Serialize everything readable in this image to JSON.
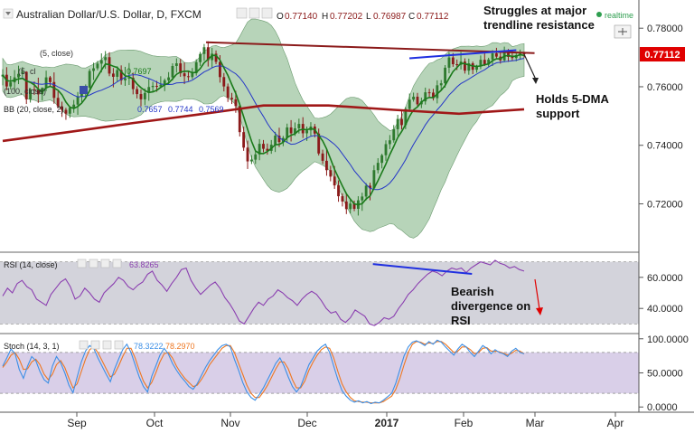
{
  "header": {
    "title": "Australian Dollar/U.S. Dollar, D, FXCM",
    "ohlc": [
      {
        "label": "O",
        "value": "0.77140"
      },
      {
        "label": "H",
        "value": "0.77202"
      },
      {
        "label": "L",
        "value": "0.76987"
      },
      {
        "label": "C",
        "value": "0.77112"
      }
    ],
    "realtime": "realtime"
  },
  "legends": {
    "ma_partial": "(5, close)",
    "ma5": "(5, cl",
    "ma5_val": "0.7697",
    "ma100": "(100, close)",
    "bb": "BB (20, close, 2)",
    "bb_vals": [
      "0.7657",
      "0.7744",
      "0.7569"
    ],
    "rsi": "RSI (14, close)",
    "rsi_val": "63.8265",
    "stoch": "Stoch (14, 3, 1)",
    "stoch_vals": [
      "78.3222",
      "78.2970"
    ]
  },
  "annotations": {
    "resistance": [
      "Struggles at major",
      "trendline resistance"
    ],
    "support": [
      "Holds 5-DMA",
      "support"
    ],
    "rsi_note": [
      "Bearish",
      "divergence on",
      "RSI"
    ]
  },
  "price_badge": "0.77112",
  "colors": {
    "background": "#ffffff",
    "band_fill": "#a5c9a8",
    "candle_up": "#2f7a2f",
    "candle_down": "#8b1a1a",
    "ma200": "#a01818",
    "ma_fast": "#1a7a1a",
    "ma_mid": "#2436c8",
    "trend_blue": "#2030e0",
    "rsi_line": "#8b3fb0",
    "rsi_band": "#d3d3db",
    "stoch_band": "#d9cfe8",
    "stoch_k": "#3c8fe6",
    "stoch_d": "#ee7722",
    "badge": "#e00000",
    "realtime_dot": "#2e9e4f"
  },
  "chart_data": {
    "type": "candlestick",
    "symbol": "Australian Dollar/U.S. Dollar",
    "interval": "D",
    "source": "FXCM",
    "x_ticks": [
      "Sep",
      "Oct",
      "Nov",
      "Dec",
      "2017",
      "Feb",
      "Mar",
      "Apr"
    ],
    "price_axis": {
      "ticks": [
        0.72,
        0.74,
        0.76,
        0.78
      ],
      "tick_labels": [
        "0.72000",
        "0.74000",
        "0.76000",
        "0.78000"
      ],
      "range": [
        0.7044,
        0.7884
      ]
    },
    "candles": [
      [
        0.7635,
        0.766,
        0.7605,
        0.7641
      ],
      [
        0.7641,
        0.7667,
        0.7588,
        0.7601
      ],
      [
        0.7601,
        0.7637,
        0.7591,
        0.7615
      ],
      [
        0.7615,
        0.7657,
        0.7585,
        0.7632
      ],
      [
        0.7632,
        0.7672,
        0.7609,
        0.7644
      ],
      [
        0.7644,
        0.7667,
        0.7633,
        0.7651
      ],
      [
        0.7651,
        0.7653,
        0.7541,
        0.7557
      ],
      [
        0.7557,
        0.7596,
        0.7546,
        0.7591
      ],
      [
        0.7591,
        0.7618,
        0.7572,
        0.7589
      ],
      [
        0.7589,
        0.7631,
        0.7545,
        0.7574
      ],
      [
        0.7574,
        0.7598,
        0.7553,
        0.7596
      ],
      [
        0.7596,
        0.7655,
        0.7585,
        0.7632
      ],
      [
        0.7632,
        0.7637,
        0.7602,
        0.7616
      ],
      [
        0.7616,
        0.7649,
        0.7542,
        0.7562
      ],
      [
        0.7562,
        0.7584,
        0.7526,
        0.7533
      ],
      [
        0.7533,
        0.7549,
        0.7497,
        0.7521
      ],
      [
        0.7521,
        0.7528,
        0.7487,
        0.7508
      ],
      [
        0.7508,
        0.7531,
        0.7494,
        0.7528
      ],
      [
        0.7528,
        0.7555,
        0.7511,
        0.7539
      ],
      [
        0.7539,
        0.7582,
        0.7504,
        0.7567
      ],
      [
        0.7567,
        0.7595,
        0.7547,
        0.7578
      ],
      [
        0.7578,
        0.7608,
        0.7562,
        0.7597
      ],
      [
        0.7597,
        0.7661,
        0.7591,
        0.7654
      ],
      [
        0.7654,
        0.7682,
        0.7623,
        0.7663
      ],
      [
        0.7663,
        0.7688,
        0.7656,
        0.7679
      ],
      [
        0.7679,
        0.7714,
        0.7649,
        0.7691
      ],
      [
        0.7691,
        0.7722,
        0.7661,
        0.7701
      ],
      [
        0.7701,
        0.7718,
        0.7636,
        0.7645
      ],
      [
        0.7645,
        0.7664,
        0.7598,
        0.7634
      ],
      [
        0.7634,
        0.767,
        0.7617,
        0.7657
      ],
      [
        0.7657,
        0.7673,
        0.7607,
        0.7622
      ],
      [
        0.7622,
        0.7668,
        0.7603,
        0.7629
      ],
      [
        0.7629,
        0.7681,
        0.7606,
        0.7631
      ],
      [
        0.7631,
        0.7648,
        0.7574,
        0.7592
      ],
      [
        0.7592,
        0.7602,
        0.756,
        0.7575
      ],
      [
        0.7575,
        0.7591,
        0.7533,
        0.7557
      ],
      [
        0.7557,
        0.7594,
        0.7537,
        0.7579
      ],
      [
        0.7579,
        0.7626,
        0.7552,
        0.7599
      ],
      [
        0.7599,
        0.7617,
        0.758,
        0.7603
      ],
      [
        0.7603,
        0.762,
        0.7583,
        0.7601
      ],
      [
        0.7601,
        0.7636,
        0.7595,
        0.7607
      ],
      [
        0.7607,
        0.7628,
        0.7585,
        0.7622
      ],
      [
        0.7622,
        0.765,
        0.7608,
        0.7632
      ],
      [
        0.7632,
        0.768,
        0.7621,
        0.7671
      ],
      [
        0.7671,
        0.7697,
        0.7648,
        0.768
      ],
      [
        0.768,
        0.7695,
        0.7634,
        0.7646
      ],
      [
        0.7646,
        0.7683,
        0.7609,
        0.7636
      ],
      [
        0.7636,
        0.7651,
        0.762,
        0.7633
      ],
      [
        0.7633,
        0.7664,
        0.7626,
        0.7646
      ],
      [
        0.7646,
        0.7694,
        0.7638,
        0.7684
      ],
      [
        0.7684,
        0.7719,
        0.7671,
        0.7712
      ],
      [
        0.7712,
        0.7746,
        0.7689,
        0.7735
      ],
      [
        0.7735,
        0.7755,
        0.7669,
        0.7691
      ],
      [
        0.7691,
        0.7733,
        0.7664,
        0.7713
      ],
      [
        0.7713,
        0.7724,
        0.7677,
        0.7685
      ],
      [
        0.7685,
        0.7708,
        0.7614,
        0.7633
      ],
      [
        0.7633,
        0.7647,
        0.7584,
        0.7601
      ],
      [
        0.7601,
        0.7611,
        0.7548,
        0.7562
      ],
      [
        0.7562,
        0.7579,
        0.7541,
        0.7557
      ],
      [
        0.7557,
        0.7586,
        0.7511,
        0.7534
      ],
      [
        0.7534,
        0.7541,
        0.743,
        0.7445
      ],
      [
        0.7445,
        0.7464,
        0.7381,
        0.7392
      ],
      [
        0.7392,
        0.7416,
        0.7319,
        0.7345
      ],
      [
        0.7345,
        0.7366,
        0.7336,
        0.7351
      ],
      [
        0.7351,
        0.738,
        0.7336,
        0.7369
      ],
      [
        0.7369,
        0.7421,
        0.7349,
        0.7405
      ],
      [
        0.7405,
        0.7418,
        0.7376,
        0.7388
      ],
      [
        0.7388,
        0.7406,
        0.7368,
        0.7381
      ],
      [
        0.7381,
        0.7418,
        0.7371,
        0.7402
      ],
      [
        0.7402,
        0.7446,
        0.7377,
        0.7433
      ],
      [
        0.7433,
        0.746,
        0.7394,
        0.7411
      ],
      [
        0.7411,
        0.7432,
        0.7397,
        0.7425
      ],
      [
        0.7425,
        0.7474,
        0.741,
        0.7461
      ],
      [
        0.7461,
        0.7486,
        0.7413,
        0.7441
      ],
      [
        0.7441,
        0.7478,
        0.7432,
        0.7458
      ],
      [
        0.7458,
        0.7491,
        0.744,
        0.7473
      ],
      [
        0.7473,
        0.7496,
        0.7425,
        0.7441
      ],
      [
        0.7441,
        0.7464,
        0.7415,
        0.7451
      ],
      [
        0.7451,
        0.7479,
        0.7432,
        0.7464
      ],
      [
        0.7464,
        0.7473,
        0.7427,
        0.744
      ],
      [
        0.744,
        0.7457,
        0.7365,
        0.7372
      ],
      [
        0.7372,
        0.7385,
        0.7336,
        0.7347
      ],
      [
        0.7347,
        0.7388,
        0.7296,
        0.7315
      ],
      [
        0.7315,
        0.733,
        0.7277,
        0.7293
      ],
      [
        0.7293,
        0.7329,
        0.7251,
        0.7263
      ],
      [
        0.7263,
        0.728,
        0.7207,
        0.7226
      ],
      [
        0.7226,
        0.7236,
        0.7191,
        0.7208
      ],
      [
        0.7208,
        0.7234,
        0.7165,
        0.7182
      ],
      [
        0.7182,
        0.7216,
        0.7167,
        0.7201
      ],
      [
        0.7201,
        0.7211,
        0.7175,
        0.7183
      ],
      [
        0.7183,
        0.7226,
        0.716,
        0.7212
      ],
      [
        0.7212,
        0.7238,
        0.7176,
        0.7225
      ],
      [
        0.7225,
        0.7271,
        0.7212,
        0.7262
      ],
      [
        0.7262,
        0.7272,
        0.7212,
        0.7253
      ],
      [
        0.7253,
        0.7332,
        0.7248,
        0.7315
      ],
      [
        0.7315,
        0.7356,
        0.7304,
        0.734
      ],
      [
        0.734,
        0.7371,
        0.7321,
        0.7366
      ],
      [
        0.7366,
        0.7417,
        0.7347,
        0.7404
      ],
      [
        0.7404,
        0.7435,
        0.7387,
        0.7417
      ],
      [
        0.7417,
        0.7469,
        0.7409,
        0.7455
      ],
      [
        0.7455,
        0.7504,
        0.7432,
        0.749
      ],
      [
        0.749,
        0.7519,
        0.7454,
        0.7469
      ],
      [
        0.7469,
        0.7531,
        0.7455,
        0.7524
      ],
      [
        0.7524,
        0.7577,
        0.7516,
        0.7556
      ],
      [
        0.7556,
        0.758,
        0.7549,
        0.7566
      ],
      [
        0.7566,
        0.7579,
        0.753,
        0.754
      ],
      [
        0.754,
        0.7563,
        0.7527,
        0.755
      ],
      [
        0.755,
        0.7597,
        0.7539,
        0.7581
      ],
      [
        0.7581,
        0.7593,
        0.7565,
        0.758
      ],
      [
        0.758,
        0.7593,
        0.7553,
        0.7561
      ],
      [
        0.7561,
        0.7622,
        0.7543,
        0.7605
      ],
      [
        0.7605,
        0.7623,
        0.759,
        0.7612
      ],
      [
        0.7612,
        0.7674,
        0.7597,
        0.7665
      ],
      [
        0.7665,
        0.7717,
        0.7646,
        0.77
      ],
      [
        0.77,
        0.7715,
        0.7668,
        0.7677
      ],
      [
        0.7677,
        0.7693,
        0.7657,
        0.7675
      ],
      [
        0.7675,
        0.7719,
        0.7659,
        0.7686
      ],
      [
        0.7686,
        0.7697,
        0.7645,
        0.7655
      ],
      [
        0.7655,
        0.7696,
        0.7641,
        0.768
      ],
      [
        0.768,
        0.7686,
        0.7643,
        0.7658
      ],
      [
        0.7658,
        0.7675,
        0.7648,
        0.767
      ],
      [
        0.767,
        0.7707,
        0.766,
        0.7692
      ],
      [
        0.7692,
        0.7722,
        0.7671,
        0.7676
      ],
      [
        0.7676,
        0.7699,
        0.7669,
        0.7693
      ],
      [
        0.7693,
        0.7725,
        0.7671,
        0.7714
      ],
      [
        0.7714,
        0.7733,
        0.7696,
        0.7703
      ],
      [
        0.7703,
        0.7722,
        0.7679,
        0.769
      ],
      [
        0.769,
        0.7737,
        0.7684,
        0.7725
      ],
      [
        0.7725,
        0.7729,
        0.7685,
        0.7702
      ],
      [
        0.7702,
        0.7724,
        0.7688,
        0.7698
      ],
      [
        0.7698,
        0.7717,
        0.7687,
        0.7708
      ],
      [
        0.7708,
        0.7727,
        0.7692,
        0.7714
      ],
      [
        0.7714,
        0.772,
        0.7699,
        0.7711
      ]
    ],
    "ma200": {
      "x_frac": [
        0,
        0.125,
        0.25,
        0.375,
        0.5,
        0.625,
        0.75,
        0.875,
        1
      ],
      "values": [
        0.7415,
        0.7445,
        0.7476,
        0.7505,
        0.7536,
        0.7536,
        0.7521,
        0.7508,
        0.7523
      ]
    },
    "trendline_resistance": {
      "start": [
        0.39,
        0.7752
      ],
      "end": [
        1.02,
        0.7715
      ]
    },
    "trendline_price_blue": {
      "start": [
        0.78,
        0.7697
      ],
      "end": [
        0.985,
        0.7725
      ]
    },
    "rsi": {
      "axis": {
        "ticks": [
          40,
          60
        ],
        "tick_labels": [
          "40.0000",
          "60.0000"
        ],
        "range": [
          25,
          75
        ]
      },
      "band": [
        30,
        70
      ],
      "values": [
        48,
        53,
        50,
        56,
        58,
        54,
        52,
        46,
        44,
        42,
        49,
        53,
        57,
        59,
        54,
        46,
        48,
        53,
        50,
        46,
        44,
        50,
        53,
        56,
        60,
        58,
        54,
        52,
        55,
        57,
        62,
        64,
        58,
        55,
        51,
        56,
        60,
        65,
        66,
        58,
        53,
        49,
        52,
        55,
        57,
        53,
        47,
        43,
        38,
        32,
        30,
        35,
        40,
        44,
        42,
        46,
        48,
        52,
        50,
        47,
        45,
        42,
        46,
        49,
        51,
        49,
        45,
        40,
        37,
        38,
        33,
        31,
        34,
        39,
        37,
        35,
        30,
        29,
        31,
        34,
        33,
        35,
        40,
        44,
        49,
        52,
        56,
        59,
        62,
        64,
        63,
        61,
        64,
        66,
        65,
        66,
        63,
        66,
        68,
        70,
        69,
        68,
        71,
        69,
        68,
        66,
        67,
        65,
        64
      ]
    },
    "rsi_divergence_line": {
      "start": [
        0.71,
        68.5
      ],
      "end": [
        0.9,
        62.2
      ]
    },
    "stoch": {
      "axis": {
        "ticks": [
          0,
          50,
          100
        ],
        "tick_labels": [
          "0.0000",
          "50.0000",
          "100.0000"
        ],
        "range": [
          -5,
          105
        ]
      },
      "band": [
        20,
        80
      ],
      "k": [
        60,
        72,
        85,
        78,
        55,
        42,
        60,
        74,
        68,
        52,
        40,
        35,
        60,
        74,
        65,
        50,
        32,
        21,
        44,
        66,
        82,
        90,
        86,
        72,
        60,
        48,
        37,
        55,
        70,
        84,
        92,
        80,
        62,
        44,
        30,
        22,
        45,
        60,
        76,
        86,
        78,
        64,
        54,
        45,
        38,
        30,
        26,
        34,
        46,
        58,
        68,
        76,
        84,
        90,
        92,
        88,
        70,
        54,
        36,
        22,
        14,
        10,
        18,
        28,
        40,
        52,
        64,
        72,
        60,
        44,
        30,
        22,
        30,
        46,
        62,
        72,
        82,
        88,
        92,
        80,
        60,
        40,
        24,
        16,
        10,
        7,
        9,
        6,
        8,
        5,
        7,
        6,
        10,
        15,
        20,
        35,
        55,
        75,
        88,
        95,
        97,
        94,
        90,
        96,
        92,
        98,
        95,
        88,
        82,
        76,
        85,
        92,
        88,
        80,
        74,
        82,
        90,
        86,
        78,
        84,
        80,
        78,
        74,
        82,
        86,
        80,
        78
      ],
      "d": [
        58,
        66,
        76,
        80,
        70,
        55,
        56,
        66,
        70,
        62,
        48,
        40,
        48,
        62,
        68,
        58,
        42,
        28,
        34,
        52,
        70,
        84,
        88,
        80,
        68,
        56,
        44,
        48,
        60,
        74,
        86,
        86,
        72,
        54,
        38,
        28,
        36,
        50,
        66,
        78,
        80,
        72,
        60,
        50,
        42,
        36,
        30,
        32,
        40,
        50,
        62,
        70,
        78,
        86,
        90,
        90,
        80,
        64,
        48,
        32,
        20,
        14,
        14,
        22,
        32,
        44,
        56,
        66,
        66,
        56,
        40,
        28,
        28,
        38,
        54,
        66,
        76,
        84,
        88,
        86,
        72,
        52,
        34,
        22,
        14,
        9,
        8,
        7,
        7,
        6,
        6,
        6,
        8,
        12,
        16,
        26,
        42,
        62,
        80,
        92,
        96,
        95,
        92,
        94,
        93,
        96,
        96,
        92,
        86,
        80,
        82,
        88,
        88,
        84,
        78,
        80,
        86,
        87,
        82,
        82,
        81,
        79,
        76,
        79,
        83,
        82,
        78
      ]
    }
  }
}
